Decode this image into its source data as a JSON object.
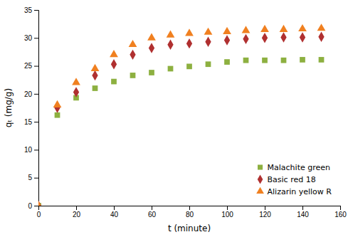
{
  "chart_data": {
    "type": "scatter",
    "xlabel": "t (minute)",
    "ylabel": "qₜ (mg/g)",
    "x": [
      0,
      10,
      20,
      30,
      40,
      50,
      60,
      70,
      80,
      90,
      100,
      110,
      120,
      130,
      140,
      150
    ],
    "series": [
      {
        "name": "Malachite green",
        "color": "#8DB040",
        "marker": "square",
        "values": [
          0,
          16.2,
          19.3,
          21.0,
          22.2,
          23.3,
          23.8,
          24.5,
          24.9,
          25.3,
          25.7,
          26.0,
          26.0,
          26.0,
          26.1,
          26.1
        ]
      },
      {
        "name": "Basic red 18",
        "color": "#B03030",
        "marker": "diamond",
        "values": [
          0,
          17.5,
          20.3,
          23.3,
          25.3,
          27.0,
          28.2,
          28.8,
          29.0,
          29.3,
          29.6,
          29.8,
          30.0,
          30.1,
          30.1,
          30.2
        ]
      },
      {
        "name": "Alizarin yellow R",
        "color": "#F08020",
        "marker": "triangle",
        "values": [
          0,
          18.0,
          22.0,
          24.5,
          27.0,
          28.8,
          30.0,
          30.5,
          30.8,
          31.0,
          31.1,
          31.3,
          31.5,
          31.5,
          31.6,
          31.7
        ]
      }
    ],
    "xlim": [
      0,
      160
    ],
    "ylim": [
      0,
      35
    ],
    "xticks": [
      0,
      20,
      40,
      60,
      80,
      100,
      120,
      140,
      160
    ],
    "yticks": [
      0,
      5,
      10,
      15,
      20,
      25,
      30,
      35
    ],
    "grid": false,
    "legend": "lower right"
  }
}
